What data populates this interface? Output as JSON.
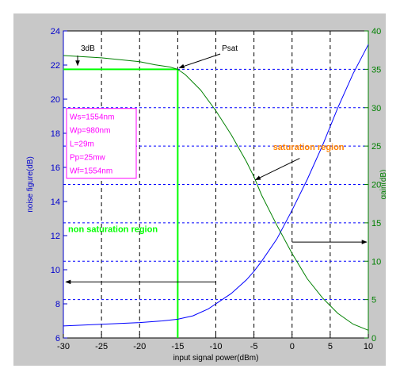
{
  "chart_data": {
    "type": "line",
    "xlabel": "input signal power(dBm)",
    "ylabel_left": "noise figure(dB)",
    "ylabel_right": "gain(dB)",
    "xlim": [
      -30,
      10
    ],
    "ylim_left": [
      6,
      24
    ],
    "ylim_right": [
      0,
      40
    ],
    "xticks": [
      -30,
      -25,
      -20,
      -15,
      -10,
      -5,
      0,
      5,
      10
    ],
    "yticks_left": [
      6,
      8,
      10,
      12,
      14,
      16,
      18,
      20,
      22,
      24
    ],
    "yticks_right": [
      0,
      5,
      10,
      15,
      20,
      25,
      30,
      35,
      40
    ],
    "grid": true,
    "colors": {
      "axes": "#000000",
      "left_axis": "#0000cc",
      "right_axis": "#008000",
      "noise_figure": "#0000ff",
      "gain": "#008000",
      "highlight": "#00ff00",
      "params_text": "#ff00ff",
      "saturation_label": "#ff8000"
    },
    "series": [
      {
        "axis": "left",
        "x": [
          -30,
          -25,
          -20,
          -17,
          -15,
          -13,
          -11,
          -10,
          -8,
          -6,
          -5,
          -4,
          -2,
          0,
          2,
          4,
          6,
          8,
          10
        ],
        "y": [
          6.7,
          6.8,
          6.9,
          7.0,
          7.1,
          7.3,
          7.7,
          8.0,
          8.6,
          9.4,
          9.9,
          10.5,
          11.8,
          13.5,
          15.3,
          17.3,
          19.5,
          21.5,
          23.2
        ]
      },
      {
        "axis": "right",
        "x": [
          -30,
          -25,
          -20,
          -18,
          -16,
          -15,
          -14,
          -12,
          -10,
          -8,
          -6,
          -5,
          -4,
          -2,
          0,
          2,
          4,
          6,
          8,
          10
        ],
        "y": [
          36.8,
          36.5,
          36.0,
          35.6,
          35.3,
          35.0,
          34.3,
          32.3,
          29.6,
          26.5,
          23.0,
          21.0,
          18.6,
          14.7,
          11.0,
          7.7,
          5.2,
          3.2,
          1.8,
          1.0
        ]
      }
    ],
    "annotations": {
      "db3": "3dB",
      "psat": "Psat",
      "saturation": "saturation region",
      "nonsaturation": "non saturation region",
      "params": [
        "Ws=1554nm",
        "Wp=980nm",
        "L=29m",
        "Pp=25mw",
        "Wf=1554nm"
      ]
    }
  }
}
